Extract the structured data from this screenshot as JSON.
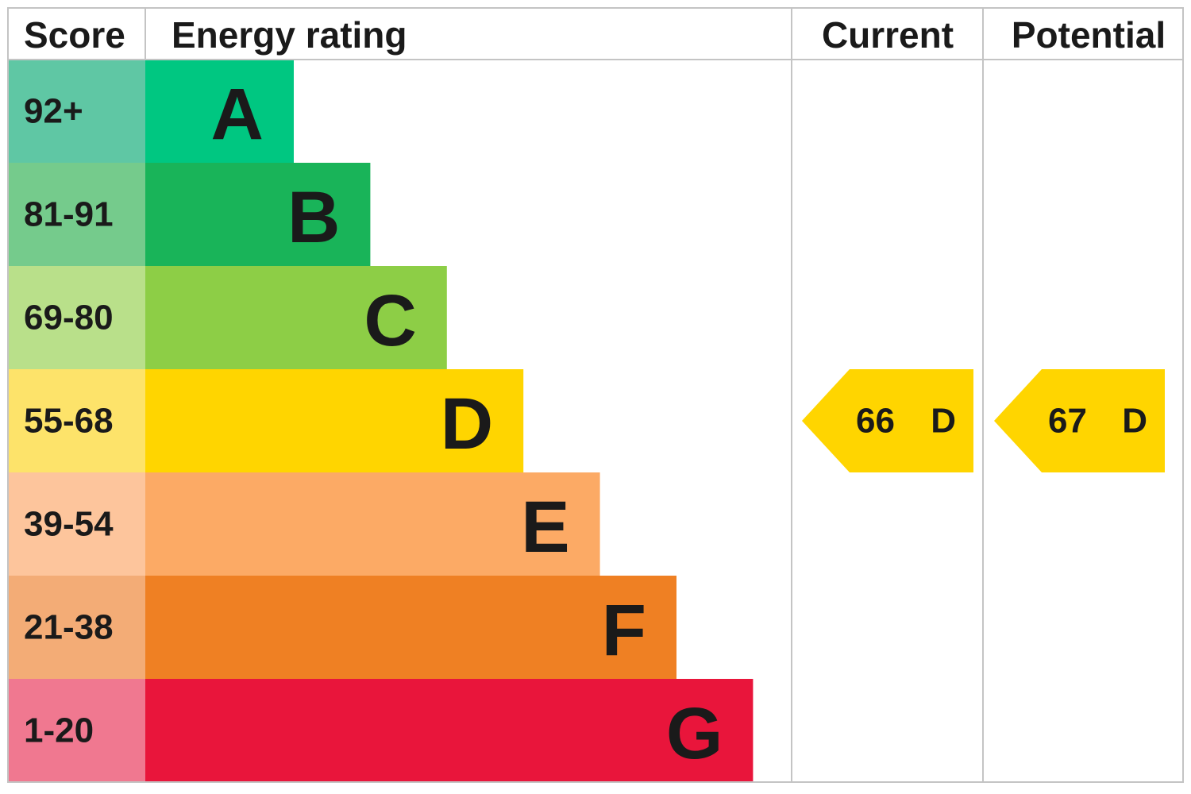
{
  "header": {
    "score": "Score",
    "rating": "Energy rating",
    "current": "Current",
    "potential": "Potential"
  },
  "rows": [
    {
      "score": "92+",
      "letter": "A",
      "color": "#00c781",
      "score_color": "#5fc7a4"
    },
    {
      "score": "81-91",
      "letter": "B",
      "color": "#19b459",
      "score_color": "#75cb8c"
    },
    {
      "score": "69-80",
      "letter": "C",
      "color": "#8dce46",
      "score_color": "#b9e08a"
    },
    {
      "score": "55-68",
      "letter": "D",
      "color": "#ffd500",
      "score_color": "#fde36a"
    },
    {
      "score": "39-54",
      "letter": "E",
      "color": "#fcaa65",
      "score_color": "#fdc59c"
    },
    {
      "score": "21-38",
      "letter": "F",
      "color": "#ef8023",
      "score_color": "#f3ac76"
    },
    {
      "score": "1-20",
      "letter": "G",
      "color": "#e9153b",
      "score_color": "#f07890"
    }
  ],
  "current": {
    "score": 66,
    "rating": "D"
  },
  "potential": {
    "score": 67,
    "rating": "D"
  }
}
